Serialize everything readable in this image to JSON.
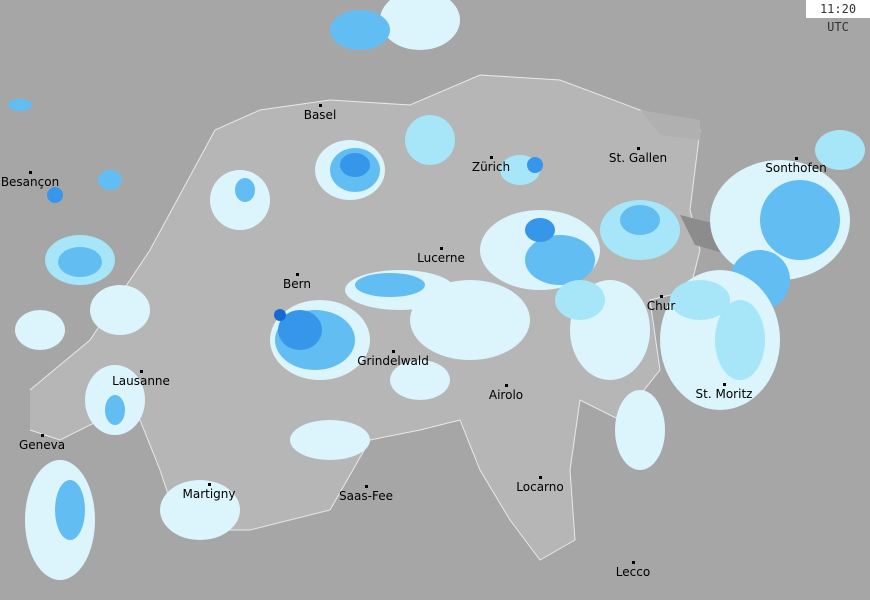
{
  "timestamp": "11:20 UTC",
  "colors": {
    "background": "#a6a6a6",
    "switzerland": "#b6b6b6",
    "border": "#e8e8e8",
    "precip_levels": [
      "#dcf4fb",
      "#a6e6f8",
      "#62bdf2",
      "#3596ea",
      "#1668d4"
    ]
  },
  "cities": [
    {
      "name": "Basel"
    },
    {
      "name": "Besançon"
    },
    {
      "name": "Zürich"
    },
    {
      "name": "St. Gallen"
    },
    {
      "name": "Sonthofen"
    },
    {
      "name": "Lucerne"
    },
    {
      "name": "Bern"
    },
    {
      "name": "Chur"
    },
    {
      "name": "Grindelwald"
    },
    {
      "name": "Lausanne"
    },
    {
      "name": "Airolo"
    },
    {
      "name": "St. Moritz"
    },
    {
      "name": "Geneva"
    },
    {
      "name": "Martigny"
    },
    {
      "name": "Saas-Fee"
    },
    {
      "name": "Locarno"
    },
    {
      "name": "Lecco"
    }
  ]
}
